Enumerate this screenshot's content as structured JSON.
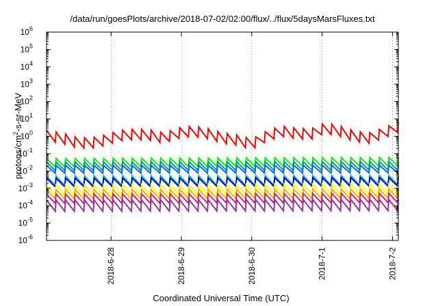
{
  "chart_data": {
    "type": "line",
    "title": "/data/run/goesPlots/archive/2018-07-02/02:00/flux/../flux/5daysMarsFluxes.txt",
    "xlabel": "Coordinated Universal Time (UTC)",
    "ylabel": {
      "text_before": "protons/cm",
      "superscript": "2",
      "text_after": "-s-sr-MeV"
    },
    "y_scale": "log",
    "ylim": [
      1e-06,
      1000000
    ],
    "y_ticks": [
      {
        "value": 1e-06,
        "base": "10",
        "exp": "-6"
      },
      {
        "value": 1e-05,
        "base": "10",
        "exp": "-5"
      },
      {
        "value": 0.0001,
        "base": "10",
        "exp": "-4"
      },
      {
        "value": 0.001,
        "base": "10",
        "exp": "-3"
      },
      {
        "value": 0.01,
        "base": "10",
        "exp": "-2"
      },
      {
        "value": 0.1,
        "base": "10",
        "exp": "-1"
      },
      {
        "value": 1,
        "base": "10",
        "exp": "0"
      },
      {
        "value": 10,
        "base": "10",
        "exp": "1"
      },
      {
        "value": 100,
        "base": "10",
        "exp": "2"
      },
      {
        "value": 1000,
        "base": "10",
        "exp": "3"
      },
      {
        "value": 10000,
        "base": "10",
        "exp": "4"
      },
      {
        "value": 100000,
        "base": "10",
        "exp": "5"
      },
      {
        "value": 1000000,
        "base": "10",
        "exp": "6"
      }
    ],
    "xlim": [
      "2018-06-27T02:00",
      "2018-07-02T02:00"
    ],
    "x_ticks": [
      {
        "value": "2018-06-28T00:00",
        "label": "2018-6-28"
      },
      {
        "value": "2018-06-29T00:00",
        "label": "2018-6-29"
      },
      {
        "value": "2018-06-30T00:00",
        "label": "2018-6-30"
      },
      {
        "value": "2018-07-01T00:00",
        "label": "2018-7-1"
      },
      {
        "value": "2018-07-02T00:00",
        "label": "2018-7-2"
      }
    ],
    "grid": true,
    "grid_style": "dotted",
    "sawtooth_cycles": 37,
    "series": [
      {
        "color": "#ff0000",
        "x": [
          "2018-06-27T02:00",
          "2018-06-27T07:00",
          "2018-06-27T12:00",
          "2018-06-27T17:00",
          "2018-06-27T22:00",
          "2018-06-28T03:00",
          "2018-06-28T08:00",
          "2018-06-28T13:00",
          "2018-06-28T18:00",
          "2018-06-28T23:00",
          "2018-06-29T04:00",
          "2018-06-29T09:00",
          "2018-06-29T14:00",
          "2018-06-29T19:00",
          "2018-06-30T00:00",
          "2018-06-30T05:00",
          "2018-06-30T10:00",
          "2018-06-30T15:00",
          "2018-06-30T20:00",
          "2018-07-01T01:00",
          "2018-07-01T06:00",
          "2018-07-01T11:00",
          "2018-07-01T16:00",
          "2018-07-01T21:00",
          "2018-07-02T02:00"
        ],
        "y": [
          1.1,
          0.8,
          0.45,
          0.4,
          0.6,
          1.1,
          1.3,
          1.2,
          0.8,
          1.5,
          2.0,
          1.4,
          0.8,
          0.6,
          0.35,
          1.0,
          2.0,
          1.5,
          1.3,
          3.0,
          2.0,
          1.0,
          0.8,
          1.5,
          3.5
        ],
        "sawtooth_amp": 0.6
      },
      {
        "color": "#00ff00",
        "x": [
          "2018-06-27T02:00",
          "2018-07-02T02:00"
        ],
        "y": [
          0.03,
          0.035
        ],
        "sawtooth_amp": 0.5
      },
      {
        "color": "#009999",
        "x": [
          "2018-06-27T02:00",
          "2018-07-02T02:00"
        ],
        "y": [
          0.0185,
          0.02
        ],
        "sawtooth_amp": 0.5
      },
      {
        "color": "#0066ff",
        "x": [
          "2018-06-27T02:00",
          "2018-07-02T02:00"
        ],
        "y": [
          0.0125,
          0.013
        ],
        "sawtooth_amp": 0.45
      },
      {
        "color": "#00cccc",
        "x": [
          "2018-06-27T02:00",
          "2018-07-02T02:00"
        ],
        "y": [
          0.0028,
          0.003
        ],
        "sawtooth_amp": 0.55
      },
      {
        "color": "#0000bb",
        "x": [
          "2018-06-27T02:00",
          "2018-07-02T02:00"
        ],
        "y": [
          0.0022,
          0.0024
        ],
        "sawtooth_amp": 0.5
      },
      {
        "color": "#ffff00",
        "x": [
          "2018-06-27T02:00",
          "2018-07-02T02:00"
        ],
        "y": [
          0.0008,
          0.0009
        ],
        "sawtooth_amp": 0.6
      },
      {
        "color": "#ffaa00",
        "x": [
          "2018-06-27T02:00",
          "2018-07-02T02:00"
        ],
        "y": [
          0.00045,
          0.0005
        ],
        "sawtooth_amp": 0.55
      },
      {
        "color": "#cc2288",
        "x": [
          "2018-06-27T02:00",
          "2018-07-02T02:00"
        ],
        "y": [
          0.00025,
          0.00028
        ],
        "sawtooth_amp": 0.55
      },
      {
        "color": "#993399",
        "x": [
          "2018-06-27T02:00",
          "2018-07-02T02:00"
        ],
        "y": [
          0.0001,
          0.00011
        ],
        "sawtooth_amp": 0.65
      }
    ]
  }
}
